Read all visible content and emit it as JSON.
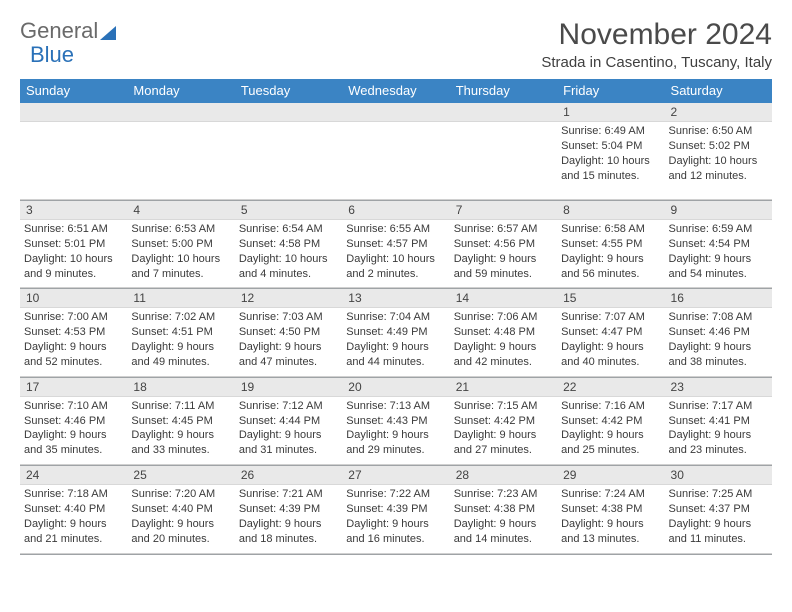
{
  "logo": {
    "text1": "General",
    "text2": "Blue"
  },
  "title": "November 2024",
  "subtitle": "Strada in Casentino, Tuscany, Italy",
  "colors": {
    "header_blue": "#3b84c4",
    "logo_blue": "#2a71b8",
    "logo_gray": "#6a6a6a",
    "text": "#3a3a3a",
    "daynum_bg": "#e9e9e9"
  },
  "day_headers": [
    "Sunday",
    "Monday",
    "Tuesday",
    "Wednesday",
    "Thursday",
    "Friday",
    "Saturday"
  ],
  "weeks": [
    [
      null,
      null,
      null,
      null,
      null,
      {
        "n": "1",
        "sunrise": "6:49 AM",
        "sunset": "5:04 PM",
        "daylight": "10 hours and 15 minutes."
      },
      {
        "n": "2",
        "sunrise": "6:50 AM",
        "sunset": "5:02 PM",
        "daylight": "10 hours and 12 minutes."
      }
    ],
    [
      {
        "n": "3",
        "sunrise": "6:51 AM",
        "sunset": "5:01 PM",
        "daylight": "10 hours and 9 minutes."
      },
      {
        "n": "4",
        "sunrise": "6:53 AM",
        "sunset": "5:00 PM",
        "daylight": "10 hours and 7 minutes."
      },
      {
        "n": "5",
        "sunrise": "6:54 AM",
        "sunset": "4:58 PM",
        "daylight": "10 hours and 4 minutes."
      },
      {
        "n": "6",
        "sunrise": "6:55 AM",
        "sunset": "4:57 PM",
        "daylight": "10 hours and 2 minutes."
      },
      {
        "n": "7",
        "sunrise": "6:57 AM",
        "sunset": "4:56 PM",
        "daylight": "9 hours and 59 minutes."
      },
      {
        "n": "8",
        "sunrise": "6:58 AM",
        "sunset": "4:55 PM",
        "daylight": "9 hours and 56 minutes."
      },
      {
        "n": "9",
        "sunrise": "6:59 AM",
        "sunset": "4:54 PM",
        "daylight": "9 hours and 54 minutes."
      }
    ],
    [
      {
        "n": "10",
        "sunrise": "7:00 AM",
        "sunset": "4:53 PM",
        "daylight": "9 hours and 52 minutes."
      },
      {
        "n": "11",
        "sunrise": "7:02 AM",
        "sunset": "4:51 PM",
        "daylight": "9 hours and 49 minutes."
      },
      {
        "n": "12",
        "sunrise": "7:03 AM",
        "sunset": "4:50 PM",
        "daylight": "9 hours and 47 minutes."
      },
      {
        "n": "13",
        "sunrise": "7:04 AM",
        "sunset": "4:49 PM",
        "daylight": "9 hours and 44 minutes."
      },
      {
        "n": "14",
        "sunrise": "7:06 AM",
        "sunset": "4:48 PM",
        "daylight": "9 hours and 42 minutes."
      },
      {
        "n": "15",
        "sunrise": "7:07 AM",
        "sunset": "4:47 PM",
        "daylight": "9 hours and 40 minutes."
      },
      {
        "n": "16",
        "sunrise": "7:08 AM",
        "sunset": "4:46 PM",
        "daylight": "9 hours and 38 minutes."
      }
    ],
    [
      {
        "n": "17",
        "sunrise": "7:10 AM",
        "sunset": "4:46 PM",
        "daylight": "9 hours and 35 minutes."
      },
      {
        "n": "18",
        "sunrise": "7:11 AM",
        "sunset": "4:45 PM",
        "daylight": "9 hours and 33 minutes."
      },
      {
        "n": "19",
        "sunrise": "7:12 AM",
        "sunset": "4:44 PM",
        "daylight": "9 hours and 31 minutes."
      },
      {
        "n": "20",
        "sunrise": "7:13 AM",
        "sunset": "4:43 PM",
        "daylight": "9 hours and 29 minutes."
      },
      {
        "n": "21",
        "sunrise": "7:15 AM",
        "sunset": "4:42 PM",
        "daylight": "9 hours and 27 minutes."
      },
      {
        "n": "22",
        "sunrise": "7:16 AM",
        "sunset": "4:42 PM",
        "daylight": "9 hours and 25 minutes."
      },
      {
        "n": "23",
        "sunrise": "7:17 AM",
        "sunset": "4:41 PM",
        "daylight": "9 hours and 23 minutes."
      }
    ],
    [
      {
        "n": "24",
        "sunrise": "7:18 AM",
        "sunset": "4:40 PM",
        "daylight": "9 hours and 21 minutes."
      },
      {
        "n": "25",
        "sunrise": "7:20 AM",
        "sunset": "4:40 PM",
        "daylight": "9 hours and 20 minutes."
      },
      {
        "n": "26",
        "sunrise": "7:21 AM",
        "sunset": "4:39 PM",
        "daylight": "9 hours and 18 minutes."
      },
      {
        "n": "27",
        "sunrise": "7:22 AM",
        "sunset": "4:39 PM",
        "daylight": "9 hours and 16 minutes."
      },
      {
        "n": "28",
        "sunrise": "7:23 AM",
        "sunset": "4:38 PM",
        "daylight": "9 hours and 14 minutes."
      },
      {
        "n": "29",
        "sunrise": "7:24 AM",
        "sunset": "4:38 PM",
        "daylight": "9 hours and 13 minutes."
      },
      {
        "n": "30",
        "sunrise": "7:25 AM",
        "sunset": "4:37 PM",
        "daylight": "9 hours and 11 minutes."
      }
    ]
  ]
}
